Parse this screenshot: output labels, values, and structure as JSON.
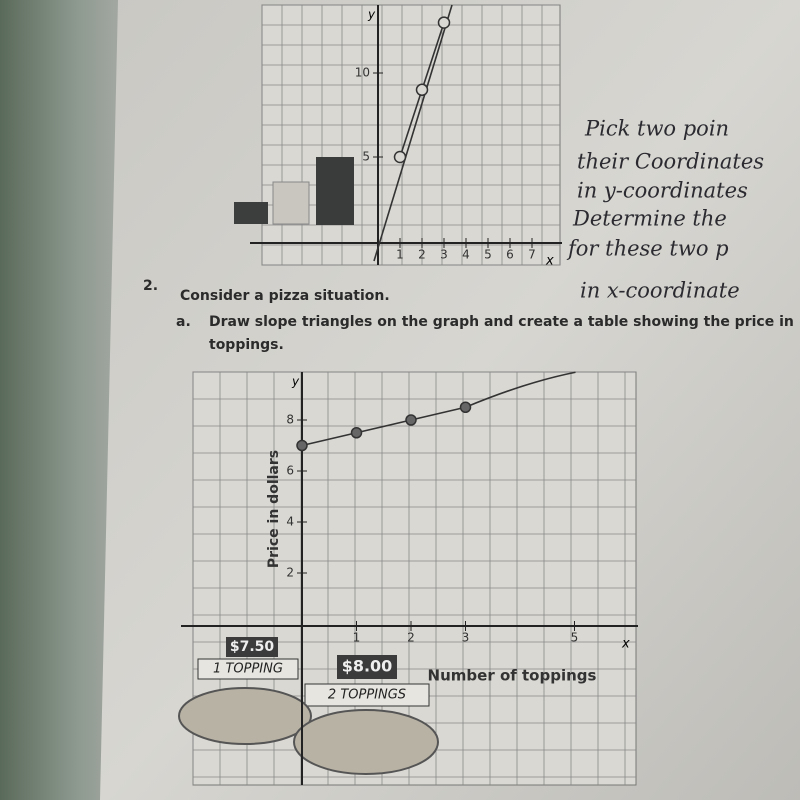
{
  "question": {
    "number": "2.",
    "text": "Consider a pizza situation.",
    "part": "a.",
    "instruction": "Draw slope triangles on the graph and create a table showing the price in",
    "instruction_cont": "toppings."
  },
  "graphs": [
    {
      "y_label": "y",
      "x_label": "x",
      "yticks": [
        5,
        10
      ],
      "xticks": [
        1,
        2,
        3,
        4,
        5,
        6,
        7
      ],
      "points": {
        "x": [
          1,
          2,
          3
        ],
        "y": [
          5,
          9,
          13
        ]
      }
    },
    {
      "y_label": "y",
      "x_label": "x",
      "axis_title_y": "Price in dollars",
      "axis_title_x": "Number of toppings",
      "yticks": [
        2,
        4,
        6,
        8
      ],
      "xticks": [
        1,
        2,
        3,
        5
      ],
      "points": {
        "x": [
          0,
          1,
          2,
          3
        ],
        "y": [
          7,
          7.5,
          8,
          8.5
        ]
      }
    }
  ],
  "labels": [
    {
      "price": "$7.50",
      "caption": "1 TOPPING"
    },
    {
      "price": "$8.00",
      "caption": "2 TOPPINGS"
    }
  ],
  "handwriting": [
    "Pick two poin",
    "their Coordinates",
    "in y-coordinates",
    "Determine the",
    "for these two p",
    "in x-coordinate"
  ]
}
